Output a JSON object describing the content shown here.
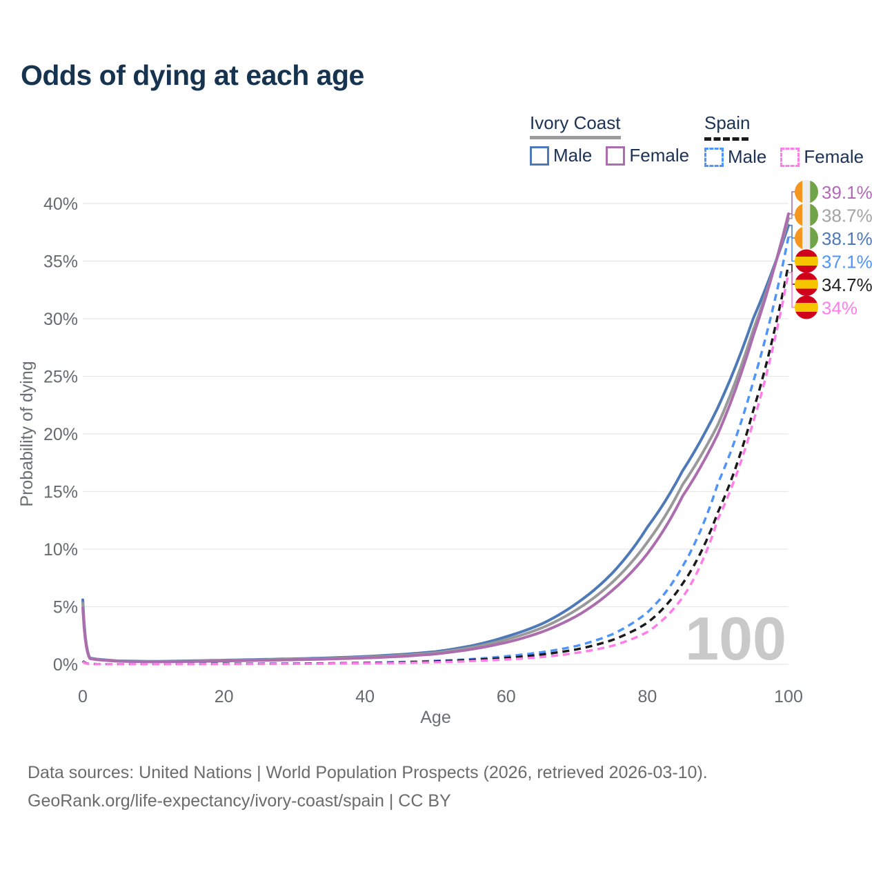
{
  "title": "Odds of dying at each age",
  "legend": {
    "ivory_coast": {
      "title": "Ivory Coast",
      "male": "Male",
      "female": "Female",
      "underline_color": "#9B9B9B"
    },
    "spain": {
      "title": "Spain",
      "male": "Male",
      "female": "Female",
      "underline_color": "#1A1A1A"
    }
  },
  "footer": {
    "line1": "Data sources: United Nations | World Population Prospects (2026, retrieved 2026-03-10).",
    "line2": "GeoRank.org/life-expectancy/ivory-coast/spain | CC BY"
  },
  "chart_data": {
    "type": "line",
    "title": "Odds of dying at each age",
    "xlabel": "Age",
    "ylabel": "Probability of dying",
    "xlim": [
      0,
      100
    ],
    "ylim": [
      0,
      40
    ],
    "grid": "horizontal",
    "legend_position": "top-right",
    "age_cursor": "100",
    "x_ticks": [
      {
        "value": 0,
        "label": "0"
      },
      {
        "value": 20,
        "label": "20"
      },
      {
        "value": 40,
        "label": "40"
      },
      {
        "value": 60,
        "label": "60"
      },
      {
        "value": 80,
        "label": "80"
      },
      {
        "value": 100,
        "label": "100"
      }
    ],
    "y_ticks": [
      {
        "value": 0,
        "label": "0%"
      },
      {
        "value": 5,
        "label": "5%"
      },
      {
        "value": 10,
        "label": "10%"
      },
      {
        "value": 15,
        "label": "15%"
      },
      {
        "value": 20,
        "label": "20%"
      },
      {
        "value": 25,
        "label": "25%"
      },
      {
        "value": 30,
        "label": "30%"
      },
      {
        "value": 35,
        "label": "35%"
      },
      {
        "value": 40,
        "label": "40%"
      }
    ],
    "x": [
      0,
      1,
      2,
      5,
      10,
      15,
      20,
      25,
      30,
      35,
      40,
      45,
      50,
      55,
      60,
      65,
      70,
      75,
      80,
      85,
      90,
      95,
      100
    ],
    "flag_colors": {
      "ivory_coast": [
        "#F5961E",
        "#EDEDED",
        "#71A347"
      ],
      "spain": [
        "#D0021B",
        "#F7C500",
        "#D0021B"
      ]
    },
    "series": [
      {
        "name": "Ivory Coast Male",
        "country": "Ivory Coast",
        "sex": "Male",
        "style": "solid",
        "color": "#4E79B8",
        "flag": "ci",
        "end_value": 38.1,
        "end_label": "38.1%",
        "values": [
          5.6,
          0.55,
          0.45,
          0.3,
          0.25,
          0.3,
          0.36,
          0.42,
          0.48,
          0.56,
          0.68,
          0.85,
          1.1,
          1.6,
          2.4,
          3.5,
          5.3,
          7.9,
          11.9,
          16.8,
          22.3,
          30.0,
          38.1
        ]
      },
      {
        "name": "Ivory Coast Both sexes",
        "country": "Ivory Coast",
        "sex": "Both",
        "style": "solid",
        "color": "#999999",
        "label_color": "#A3A3A3",
        "flag": "ci",
        "end_value": 38.7,
        "end_label": "38.7%",
        "values": [
          5.3,
          0.52,
          0.42,
          0.28,
          0.23,
          0.27,
          0.33,
          0.38,
          0.44,
          0.51,
          0.61,
          0.77,
          1.0,
          1.45,
          2.15,
          3.15,
          4.75,
          7.1,
          10.6,
          15.6,
          20.8,
          29.0,
          38.7
        ]
      },
      {
        "name": "Ivory Coast Female",
        "country": "Ivory Coast",
        "sex": "Female",
        "style": "solid",
        "color": "#AB6DAD",
        "label_color": "#B26AB8",
        "flag": "ci",
        "end_value": 39.1,
        "end_label": "39.1%",
        "values": [
          4.9,
          0.5,
          0.4,
          0.27,
          0.21,
          0.24,
          0.29,
          0.34,
          0.39,
          0.46,
          0.55,
          0.68,
          0.9,
          1.3,
          1.9,
          2.8,
          4.2,
          6.4,
          9.6,
          14.6,
          20.0,
          28.5,
          39.1
        ]
      },
      {
        "name": "Spain Male",
        "country": "Spain",
        "sex": "Male",
        "style": "dashed",
        "color": "#4F94F8",
        "flag": "es",
        "end_value": 37.1,
        "end_label": "37.1%",
        "values": [
          0.3,
          0.03,
          0.02,
          0.01,
          0.01,
          0.02,
          0.05,
          0.06,
          0.07,
          0.09,
          0.13,
          0.2,
          0.3,
          0.45,
          0.7,
          1.05,
          1.6,
          2.6,
          4.5,
          8.5,
          15.7,
          24.5,
          37.1
        ]
      },
      {
        "name": "Spain Both sexes",
        "country": "Spain",
        "sex": "Both",
        "style": "dashed",
        "color": "#1A1A1A",
        "label_color": "#222222",
        "flag": "es",
        "end_value": 34.7,
        "end_label": "34.7%",
        "values": [
          0.27,
          0.03,
          0.02,
          0.01,
          0.01,
          0.02,
          0.04,
          0.05,
          0.06,
          0.08,
          0.11,
          0.17,
          0.25,
          0.38,
          0.55,
          0.85,
          1.3,
          2.1,
          3.6,
          7.0,
          13.2,
          22.0,
          34.7
        ]
      },
      {
        "name": "Spain Female",
        "country": "Spain",
        "sex": "Female",
        "style": "dashed",
        "color": "#FF7DE9",
        "flag": "es",
        "end_value": 34.0,
        "end_label": "34%",
        "values": [
          0.23,
          0.02,
          0.02,
          0.01,
          0.01,
          0.01,
          0.02,
          0.03,
          0.04,
          0.06,
          0.08,
          0.12,
          0.18,
          0.28,
          0.42,
          0.63,
          1.0,
          1.6,
          2.8,
          5.8,
          12.6,
          21.0,
          34.0
        ]
      }
    ]
  }
}
